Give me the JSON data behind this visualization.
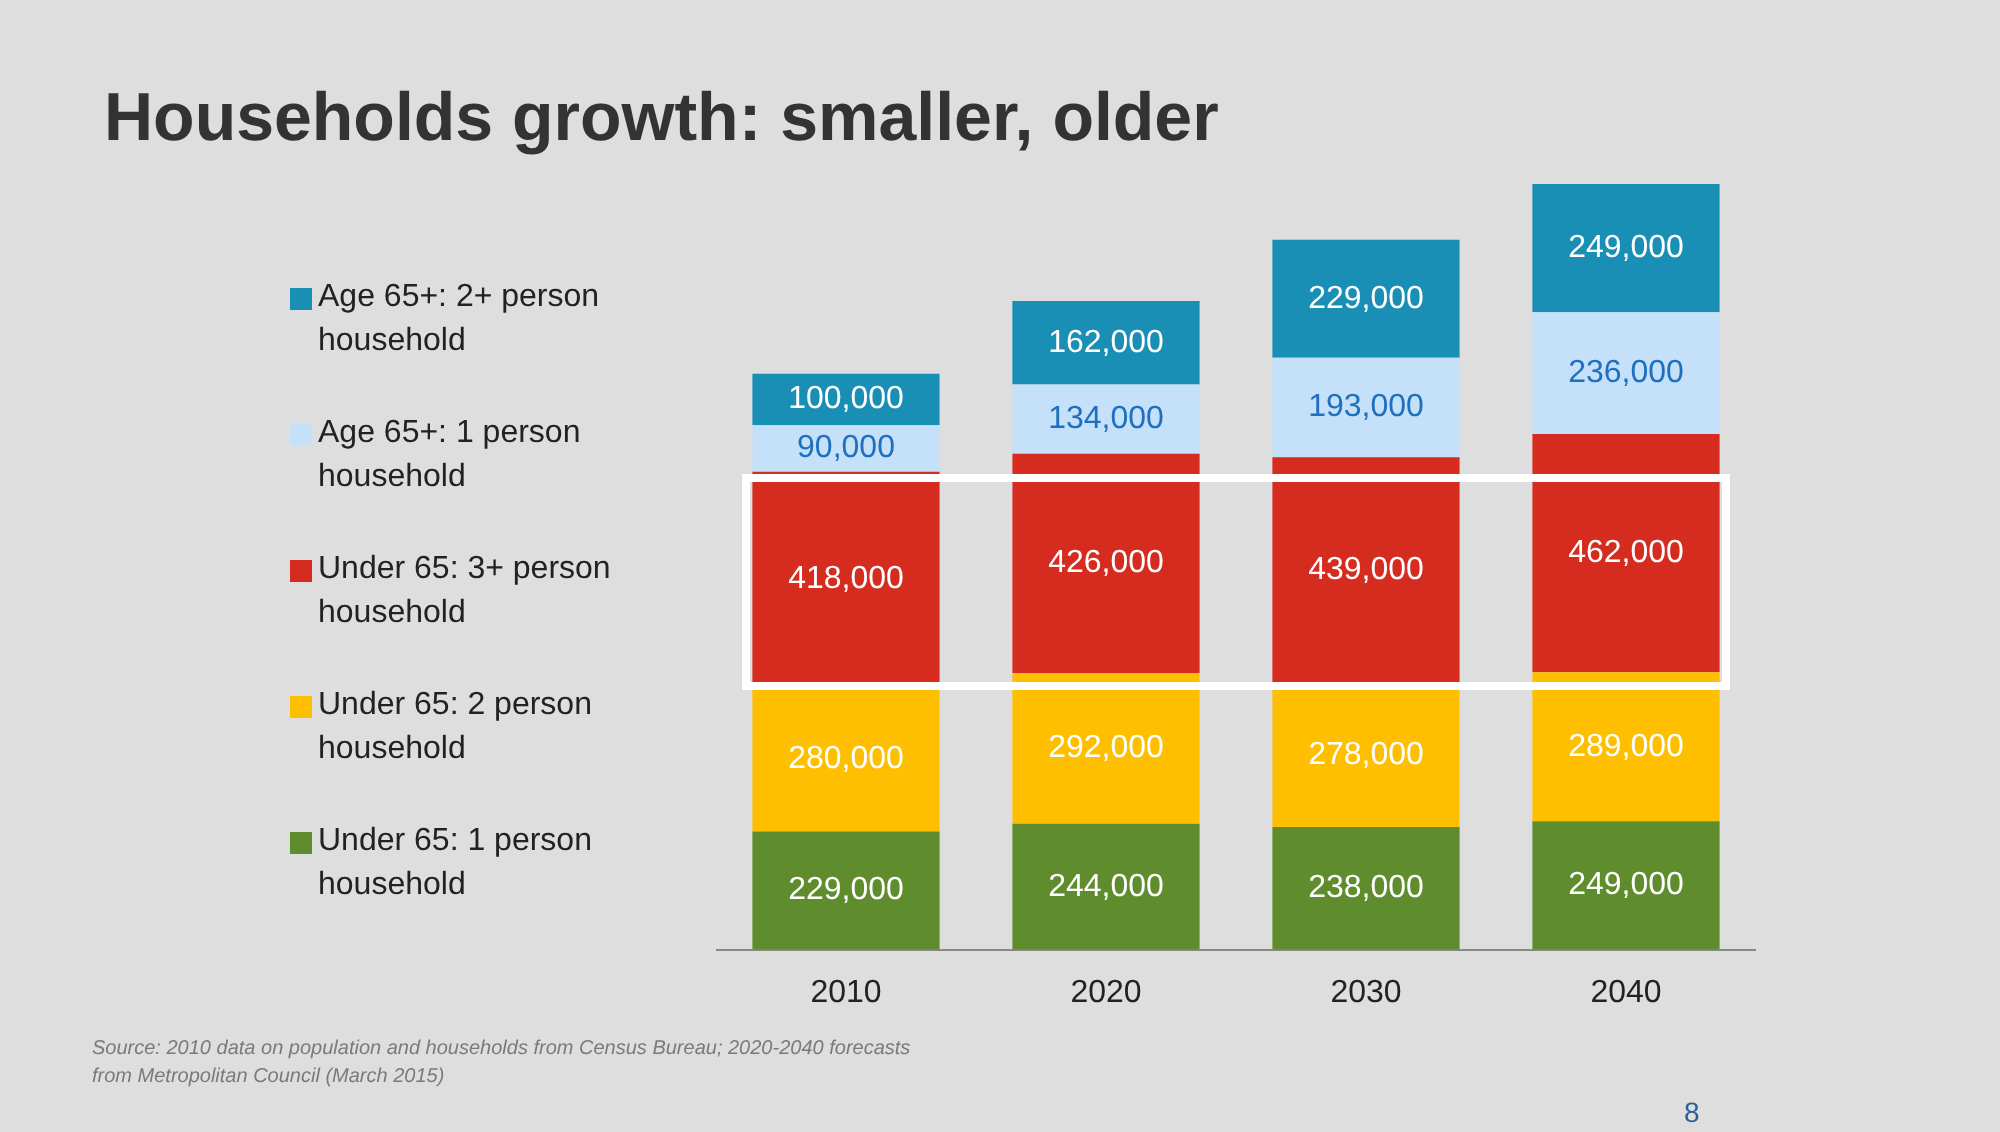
{
  "chart_data": {
    "type": "bar",
    "title": "Households growth: smaller, older",
    "stacked": true,
    "legend": "left",
    "grid": false,
    "categories": [
      "2010",
      "2020",
      "2030",
      "2040"
    ],
    "series": [
      {
        "name": "Under 65:  1 person household",
        "color": "#5f8c2c",
        "values": [
          229000,
          244000,
          238000,
          249000
        ],
        "value_labels": [
          "229,000",
          "244,000",
          "238,000",
          "249,000"
        ]
      },
      {
        "name": "Under 65:  2 person household",
        "color": "#fdbf00",
        "values": [
          280000,
          292000,
          278000,
          289000
        ],
        "value_labels": [
          "280,000",
          "292,000",
          "278,000",
          "289,000"
        ]
      },
      {
        "name": "Under 65:  3+ person household",
        "color": "#d62b1f",
        "values": [
          418000,
          426000,
          439000,
          462000
        ],
        "value_labels": [
          "418,000",
          "426,000",
          "439,000",
          "462,000"
        ]
      },
      {
        "name": "Age 65+:  1 person household",
        "color": "#c5e0f9",
        "values": [
          90000,
          134000,
          193000,
          236000
        ],
        "value_labels": [
          "90,000",
          "134,000",
          "193,000",
          "236,000"
        ]
      },
      {
        "name": "Age 65+:  2+ person household",
        "color": "#1a8fb5",
        "values": [
          100000,
          162000,
          229000,
          249000
        ],
        "value_labels": [
          "100,000",
          "162,000",
          "229,000",
          "249,000"
        ]
      }
    ],
    "annotations": [
      "Source:  2010 data on population and households from Census Bureau; 2020-2040 forecasts from Metropolitan Council (March 2015)",
      "8"
    ]
  }
}
